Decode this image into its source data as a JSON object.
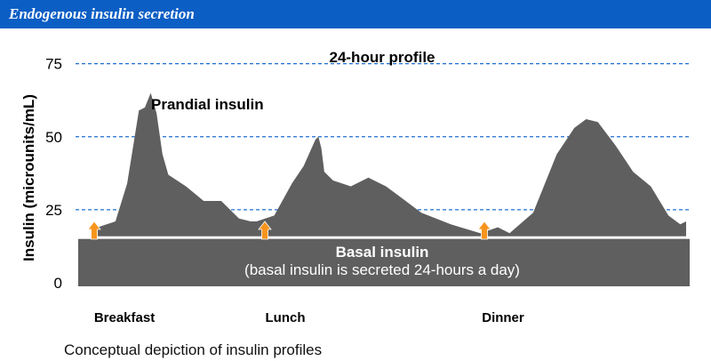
{
  "header": {
    "title": "Endogenous insulin secretion"
  },
  "caption": "Conceptual depiction of insulin profiles",
  "colors": {
    "header_bg": "#0a5ec4",
    "fill": "#5f5f5f",
    "grid": "#1f6fd0",
    "arrow": "#f7941d"
  },
  "chart_data": {
    "type": "area",
    "title": "24-hour profile",
    "ylabel": "Insulin (microunits/mL)",
    "xlabel": "",
    "ylim": [
      0,
      75
    ],
    "yticks": [
      75,
      50,
      25,
      0
    ],
    "grid": "dashed horizontal at 25, 50, 75",
    "meals": [
      "Breakfast",
      "Lunch",
      "Dinner"
    ],
    "basal": {
      "label": "Basal insulin",
      "sublabel": "(basal insulin is secreted 24-hours a day)",
      "level": 15
    },
    "prandial": {
      "label": "Prandial insulin",
      "x": [
        0,
        3,
        5,
        7,
        8,
        9,
        10,
        11,
        12,
        15,
        18,
        21,
        24,
        26,
        27,
        30,
        33,
        35,
        37,
        37.5,
        38,
        38.5,
        40,
        43,
        46,
        49,
        51,
        55,
        60,
        65,
        68,
        70,
        74,
        78,
        81,
        83,
        85,
        88,
        91,
        94,
        97,
        99,
        100
      ],
      "y": [
        19,
        21,
        34,
        59,
        60,
        65,
        58,
        44,
        37,
        33,
        28,
        28,
        22,
        21,
        21,
        23,
        34,
        40,
        49,
        50,
        46,
        38,
        35,
        33,
        36,
        33,
        30,
        24,
        20,
        17,
        19,
        17,
        24,
        44,
        53,
        56,
        55,
        47,
        38,
        33,
        23,
        20,
        21
      ]
    }
  }
}
